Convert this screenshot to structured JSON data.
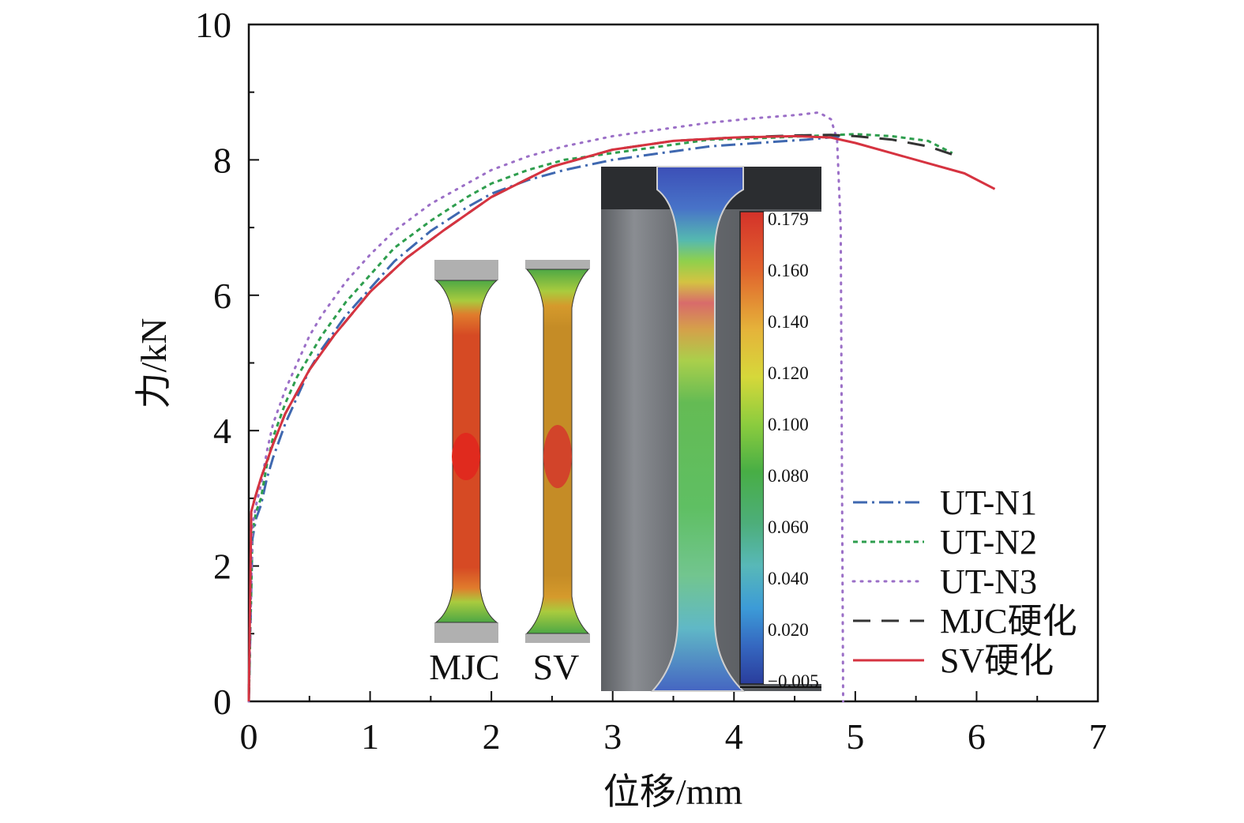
{
  "chart_data": {
    "type": "line",
    "xlabel": "位移/mm",
    "ylabel": "力/kN",
    "xlim": [
      0,
      7
    ],
    "ylim": [
      0,
      10
    ],
    "xticks": [
      "0",
      "1",
      "2",
      "3",
      "4",
      "5",
      "6",
      "7"
    ],
    "yticks": [
      "0",
      "2",
      "4",
      "6",
      "8",
      "10"
    ],
    "grid": false,
    "legend_position": "bottom-right",
    "series": [
      {
        "name": "UT-N1",
        "color": "#3f68b0",
        "dash": "dashdot",
        "x": [
          0,
          0.03,
          0.06,
          0.1,
          0.15,
          0.2,
          0.3,
          0.4,
          0.5,
          0.6,
          0.8,
          1.0,
          1.2,
          1.5,
          1.8,
          2.0,
          2.3,
          2.6,
          3.0,
          3.4,
          3.8,
          4.2,
          4.6,
          4.9
        ],
        "y": [
          0,
          2.4,
          2.7,
          2.9,
          3.3,
          3.6,
          4.1,
          4.5,
          4.9,
          5.2,
          5.7,
          6.1,
          6.5,
          6.95,
          7.3,
          7.5,
          7.7,
          7.85,
          8.0,
          8.1,
          8.2,
          8.25,
          8.3,
          8.35
        ]
      },
      {
        "name": "UT-N2",
        "color": "#2e9e4e",
        "dash": "dashed",
        "x": [
          0,
          0.03,
          0.06,
          0.1,
          0.15,
          0.2,
          0.3,
          0.4,
          0.5,
          0.6,
          0.8,
          1.0,
          1.2,
          1.5,
          1.8,
          2.0,
          2.3,
          2.6,
          3.0,
          3.4,
          3.8,
          4.2,
          4.6,
          5.0,
          5.3,
          5.6,
          5.8
        ],
        "y": [
          0,
          2.5,
          2.8,
          3.0,
          3.5,
          3.9,
          4.4,
          4.8,
          5.1,
          5.4,
          5.9,
          6.3,
          6.7,
          7.1,
          7.45,
          7.65,
          7.85,
          8.0,
          8.1,
          8.2,
          8.3,
          8.32,
          8.35,
          8.38,
          8.35,
          8.28,
          8.1
        ]
      },
      {
        "name": "UT-N3",
        "color": "#9b6fc7",
        "dash": "dotted",
        "x": [
          0,
          0.03,
          0.06,
          0.1,
          0.15,
          0.2,
          0.3,
          0.4,
          0.5,
          0.6,
          0.8,
          1.0,
          1.2,
          1.5,
          1.8,
          2.0,
          2.3,
          2.6,
          3.0,
          3.4,
          3.8,
          4.2,
          4.5,
          4.7,
          4.8,
          4.85,
          4.88,
          4.9
        ],
        "y": [
          0,
          2.6,
          2.9,
          3.2,
          3.7,
          4.1,
          4.6,
          5.0,
          5.4,
          5.7,
          6.2,
          6.6,
          6.95,
          7.35,
          7.65,
          7.85,
          8.05,
          8.2,
          8.35,
          8.45,
          8.55,
          8.62,
          8.66,
          8.7,
          8.6,
          8.3,
          7.0,
          0
        ]
      },
      {
        "name": "MJC硬化",
        "color": "#333333",
        "dash": "longdash",
        "x": [
          0,
          0.02,
          0.05,
          0.1,
          0.2,
          0.3,
          0.5,
          0.7,
          1.0,
          1.3,
          1.6,
          2.0,
          2.5,
          3.0,
          3.5,
          4.0,
          4.5,
          4.8,
          5.0,
          5.3,
          5.6,
          5.85
        ],
        "y": [
          0,
          2.8,
          3.0,
          3.3,
          3.8,
          4.25,
          4.9,
          5.4,
          6.05,
          6.55,
          6.95,
          7.45,
          7.9,
          8.15,
          8.28,
          8.33,
          8.36,
          8.37,
          8.35,
          8.3,
          8.2,
          8.05
        ]
      },
      {
        "name": "SV硬化",
        "color": "#d63340",
        "dash": "solid",
        "x": [
          0,
          0.02,
          0.05,
          0.1,
          0.2,
          0.3,
          0.5,
          0.7,
          1.0,
          1.3,
          1.6,
          2.0,
          2.5,
          3.0,
          3.5,
          4.0,
          4.5,
          4.8,
          5.0,
          5.3,
          5.6,
          5.9,
          6.15
        ],
        "y": [
          0,
          2.8,
          3.0,
          3.3,
          3.8,
          4.25,
          4.9,
          5.4,
          6.05,
          6.55,
          6.95,
          7.45,
          7.9,
          8.15,
          8.28,
          8.33,
          8.35,
          8.33,
          8.25,
          8.1,
          7.95,
          7.8,
          7.57
        ]
      }
    ],
    "insets": {
      "mjc_label": "MJC",
      "sv_label": "SV",
      "colorbar_ticks": [
        "0.179",
        "0.160",
        "0.140",
        "0.120",
        "0.100",
        "0.080",
        "0.060",
        "0.040",
        "0.020",
        "−0.005"
      ]
    }
  }
}
